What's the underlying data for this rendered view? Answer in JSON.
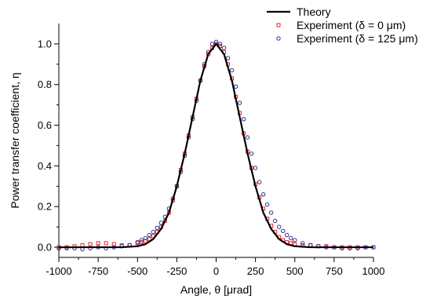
{
  "chart_data": {
    "type": "scatter",
    "xlabel": "Angle, θ [μrad]",
    "ylabel": "Power transfer coefficient, η",
    "xlim": [
      -1000,
      1000
    ],
    "ylim": [
      -0.05,
      1.1
    ],
    "x_ticks": [
      -1000,
      -750,
      -500,
      -250,
      0,
      250,
      500,
      750,
      1000
    ],
    "x_tick_labels": [
      "-1000",
      "-750",
      "-500",
      "-250",
      "0",
      "250",
      "500",
      "750",
      "1000"
    ],
    "y_ticks": [
      0.0,
      0.2,
      0.4,
      0.6,
      0.8,
      1.0
    ],
    "y_tick_labels": [
      "0.0",
      "0.2",
      "0.4",
      "0.6",
      "0.8",
      "1.0"
    ],
    "grid": false,
    "legend_position": "top-right",
    "series": [
      {
        "name": "Theory",
        "kind": "line",
        "color": "#000000",
        "x": [
          -1000,
          -750,
          -600,
          -500,
          -450,
          -400,
          -350,
          -300,
          -250,
          -200,
          -150,
          -100,
          -50,
          0,
          50,
          100,
          150,
          200,
          250,
          300,
          350,
          400,
          450,
          500,
          600,
          750,
          1000
        ],
        "y": [
          0.0,
          0.0,
          0.0,
          0.005,
          0.015,
          0.04,
          0.09,
          0.17,
          0.3,
          0.46,
          0.64,
          0.82,
          0.95,
          1.0,
          0.95,
          0.82,
          0.64,
          0.46,
          0.3,
          0.17,
          0.09,
          0.04,
          0.015,
          0.005,
          0.0,
          0.0,
          0.0
        ]
      },
      {
        "name": "Experiment (δ = 0 μm)",
        "kind": "scatter",
        "marker": "square",
        "color": "#e8242b",
        "x": [
          -1000,
          -950,
          -900,
          -850,
          -800,
          -750,
          -700,
          -650,
          -600,
          -550,
          -500,
          -475,
          -450,
          -425,
          -400,
          -375,
          -350,
          -325,
          -300,
          -275,
          -250,
          -225,
          -200,
          -175,
          -150,
          -125,
          -100,
          -75,
          -50,
          -25,
          0,
          25,
          50,
          75,
          100,
          125,
          150,
          175,
          200,
          225,
          250,
          275,
          300,
          325,
          350,
          375,
          400,
          425,
          450,
          475,
          500,
          550,
          600,
          650,
          700,
          750,
          800,
          850,
          900,
          950,
          1000
        ],
        "y": [
          0.0,
          0.0,
          0.005,
          0.01,
          0.015,
          0.02,
          0.02,
          0.015,
          0.01,
          0.01,
          0.02,
          0.025,
          0.03,
          0.04,
          0.055,
          0.075,
          0.1,
          0.13,
          0.17,
          0.23,
          0.3,
          0.38,
          0.46,
          0.55,
          0.64,
          0.73,
          0.82,
          0.89,
          0.95,
          0.98,
          1.0,
          0.99,
          0.96,
          0.9,
          0.83,
          0.74,
          0.66,
          0.56,
          0.47,
          0.39,
          0.31,
          0.245,
          0.19,
          0.14,
          0.105,
          0.075,
          0.05,
          0.035,
          0.025,
          0.02,
          0.015,
          0.01,
          0.01,
          0.005,
          0.005,
          0.0,
          0.0,
          0.0,
          0.0,
          0.0,
          0.0
        ]
      },
      {
        "name": "Experiment (δ = 125 μm)",
        "kind": "scatter",
        "marker": "circle",
        "color": "#2b2e91",
        "x": [
          -1000,
          -950,
          -900,
          -850,
          -800,
          -750,
          -700,
          -650,
          -600,
          -550,
          -500,
          -475,
          -450,
          -425,
          -400,
          -375,
          -350,
          -325,
          -300,
          -275,
          -250,
          -225,
          -200,
          -175,
          -150,
          -125,
          -100,
          -75,
          -50,
          -25,
          0,
          25,
          50,
          75,
          100,
          125,
          150,
          175,
          200,
          225,
          250,
          275,
          300,
          325,
          350,
          375,
          400,
          425,
          450,
          475,
          500,
          550,
          600,
          650,
          700,
          750,
          800,
          850,
          900,
          950,
          1000
        ],
        "y": [
          -0.005,
          -0.005,
          -0.005,
          -0.01,
          -0.005,
          0.0,
          -0.005,
          0.0,
          0.005,
          0.01,
          0.025,
          0.035,
          0.045,
          0.06,
          0.075,
          0.095,
          0.12,
          0.15,
          0.19,
          0.24,
          0.3,
          0.37,
          0.45,
          0.54,
          0.63,
          0.72,
          0.82,
          0.9,
          0.96,
          1.0,
          1.01,
          1.0,
          0.98,
          0.93,
          0.87,
          0.79,
          0.71,
          0.63,
          0.54,
          0.46,
          0.39,
          0.32,
          0.26,
          0.21,
          0.17,
          0.13,
          0.1,
          0.08,
          0.06,
          0.045,
          0.035,
          0.02,
          0.01,
          0.005,
          0.0,
          0.0,
          -0.005,
          -0.005,
          -0.005,
          0.0,
          0.0
        ]
      }
    ]
  }
}
